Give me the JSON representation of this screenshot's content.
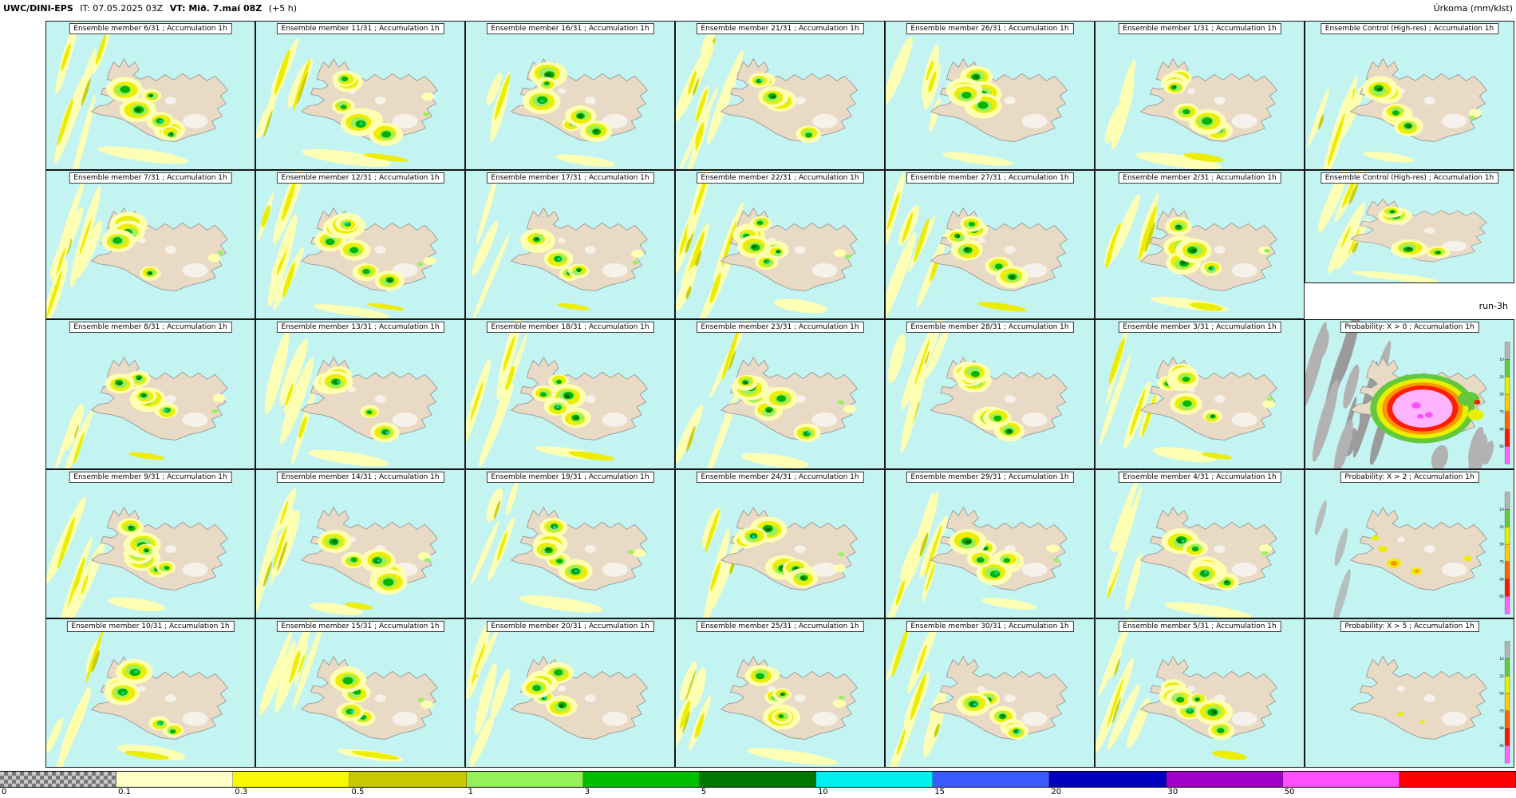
{
  "header": {
    "model": "UWC/DINI-EPS",
    "it_text": "IT: 07.05.2025 03Z",
    "vt_text": "VT: Mið. 7.maí 08Z",
    "offset": "(+5 h)",
    "unit": "Úrkoma (mm/klst)"
  },
  "run_label": "run-3h",
  "grid": {
    "rows": 5,
    "cols": 7
  },
  "panels": [
    {
      "title": "Ensemble member 6/31 ; Accumulation 1h",
      "type": "member",
      "seed": 6
    },
    {
      "title": "Ensemble member 11/31 ; Accumulation 1h",
      "type": "member",
      "seed": 11
    },
    {
      "title": "Ensemble member 16/31 ; Accumulation 1h",
      "type": "member",
      "seed": 16
    },
    {
      "title": "Ensemble member 21/31 ; Accumulation 1h",
      "type": "member",
      "seed": 21
    },
    {
      "title": "Ensemble member 26/31 ; Accumulation 1h",
      "type": "member",
      "seed": 26
    },
    {
      "title": "Ensemble member 1/31 ; Accumulation 1h",
      "type": "member",
      "seed": 1
    },
    {
      "title": "Ensemble Control (High-res) ; Accumulation 1h",
      "type": "member",
      "seed": 40
    },
    {
      "title": "Ensemble member 7/31 ; Accumulation 1h",
      "type": "member",
      "seed": 7
    },
    {
      "title": "Ensemble member 12/31 ; Accumulation 1h",
      "type": "member",
      "seed": 12
    },
    {
      "title": "Ensemble member 17/31 ; Accumulation 1h",
      "type": "member",
      "seed": 17
    },
    {
      "title": "Ensemble member 22/31 ; Accumulation 1h",
      "type": "member",
      "seed": 22
    },
    {
      "title": "Ensemble member 27/31 ; Accumulation 1h",
      "type": "member",
      "seed": 27
    },
    {
      "title": "Ensemble member 2/31 ; Accumulation 1h",
      "type": "member",
      "seed": 2
    },
    {
      "title": "Ensemble Control (High-res) ; Accumulation 1h",
      "type": "member",
      "seed": 41
    },
    {
      "title": "Ensemble member 8/31 ; Accumulation 1h",
      "type": "member",
      "seed": 8
    },
    {
      "title": "Ensemble member 13/31 ; Accumulation 1h",
      "type": "member",
      "seed": 13
    },
    {
      "title": "Ensemble member 18/31 ; Accumulation 1h",
      "type": "member",
      "seed": 18
    },
    {
      "title": "Ensemble member 23/31 ; Accumulation 1h",
      "type": "member",
      "seed": 23
    },
    {
      "title": "Ensemble member 28/31 ; Accumulation 1h",
      "type": "member",
      "seed": 28
    },
    {
      "title": "Ensemble member 3/31 ; Accumulation 1h",
      "type": "member",
      "seed": 3
    },
    {
      "title": "Probability: X > 0 ; Accumulation 1h",
      "type": "prob0",
      "seed": 90
    },
    {
      "title": "Ensemble member 9/31 ; Accumulation 1h",
      "type": "member",
      "seed": 9
    },
    {
      "title": "Ensemble member 14/31 ; Accumulation 1h",
      "type": "member",
      "seed": 14
    },
    {
      "title": "Ensemble member 19/31 ; Accumulation 1h",
      "type": "member",
      "seed": 19
    },
    {
      "title": "Ensemble member 24/31 ; Accumulation 1h",
      "type": "member",
      "seed": 24
    },
    {
      "title": "Ensemble member 29/31 ; Accumulation 1h",
      "type": "member",
      "seed": 29
    },
    {
      "title": "Ensemble member 4/31 ; Accumulation 1h",
      "type": "member",
      "seed": 4
    },
    {
      "title": "Probability: X > 2 ; Accumulation 1h",
      "type": "prob2",
      "seed": 92
    },
    {
      "title": "Ensemble member 10/31 ; Accumulation 1h",
      "type": "member",
      "seed": 10
    },
    {
      "title": "Ensemble member 15/31 ; Accumulation 1h",
      "type": "member",
      "seed": 15
    },
    {
      "title": "Ensemble member 20/31 ; Accumulation 1h",
      "type": "member",
      "seed": 20
    },
    {
      "title": "Ensemble member 25/31 ; Accumulation 1h",
      "type": "member",
      "seed": 25
    },
    {
      "title": "Ensemble member 30/31 ; Accumulation 1h",
      "type": "member",
      "seed": 30
    },
    {
      "title": "Ensemble member 5/31 ; Accumulation 1h",
      "type": "member",
      "seed": 5
    },
    {
      "title": "Probability: X > 5 ; Accumulation 1h",
      "type": "prob5",
      "seed": 95
    }
  ],
  "map": {
    "ocean": "#c3f4f1",
    "land": "#e9dac5",
    "coast": "#8f8f8f",
    "glacier": "#f6f1ea",
    "precip_levels": [
      "#ffffb0",
      "#eded00",
      "#c8c800",
      "#9cf05f",
      "#00b400",
      "#006e00",
      "#00dcdc"
    ],
    "prob_gray_dark": "#9b9b9b",
    "prob_gray_light": "#b2b2b2",
    "prob_green": "#64c83c",
    "prob_yellow": "#e6f000",
    "prob_orange": "#ff9600",
    "prob_red": "#ff1e00",
    "prob_pink": "#ffb4ff",
    "prob_magenta": "#ff50ff"
  },
  "prob_bar": {
    "colors": [
      "#b4b4b4",
      "#64c83c",
      "#e6f000",
      "#ffc800",
      "#ff6400",
      "#ff1400",
      "#ff64ff"
    ],
    "labels": [
      "10",
      "25",
      "50",
      "75",
      "90",
      "95"
    ]
  },
  "colorbar": {
    "unit_hint": "mm/klst",
    "segments": [
      {
        "label": "0",
        "checker": true
      },
      {
        "label": "0.1",
        "color": "#ffffc8"
      },
      {
        "label": "0.3",
        "color": "#f8f800"
      },
      {
        "label": "0.5",
        "color": "#c8c800"
      },
      {
        "label": "1",
        "color": "#96f05a"
      },
      {
        "label": "3",
        "color": "#00be00"
      },
      {
        "label": "5",
        "color": "#007800"
      },
      {
        "label": "10",
        "color": "#00f0f0"
      },
      {
        "label": "15",
        "color": "#3c5aff"
      },
      {
        "label": "20",
        "color": "#0000be"
      },
      {
        "label": "30",
        "color": "#a000c8"
      },
      {
        "label": "50",
        "color": "#ff50ff"
      },
      {
        "label": "",
        "color": "#ff0000"
      }
    ]
  }
}
